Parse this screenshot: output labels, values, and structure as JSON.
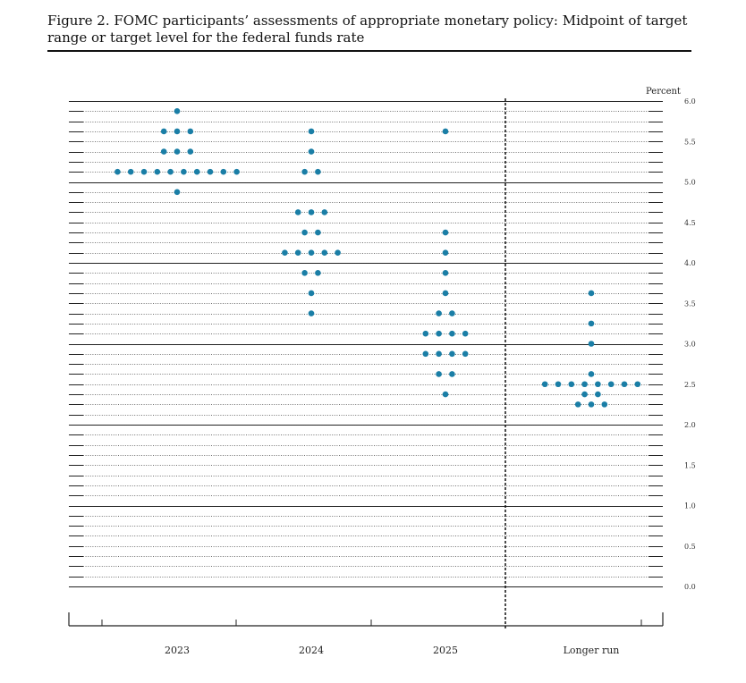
{
  "figure": {
    "title": "Figure 2.  FOMC participants’ assessments of appropriate monetary policy: Midpoint of target range or target level for the federal funds rate"
  },
  "chart_data": {
    "type": "scatter",
    "ylabel": "Percent",
    "ylim": [
      0,
      6
    ],
    "yticks": [
      "0.0",
      "0.5",
      "1.0",
      "1.5",
      "2.0",
      "2.5",
      "3.0",
      "3.5",
      "4.0",
      "4.5",
      "5.0",
      "5.5",
      "6.0"
    ],
    "categories": [
      "2023",
      "2024",
      "2025",
      "Longer run"
    ],
    "dot_color": "#1a7ea6",
    "series": [
      {
        "category": "2023",
        "points": [
          {
            "y": 5.875,
            "count": 1
          },
          {
            "y": 5.625,
            "count": 3
          },
          {
            "y": 5.375,
            "count": 3
          },
          {
            "y": 5.125,
            "count": 10
          },
          {
            "y": 4.875,
            "count": 1
          }
        ]
      },
      {
        "category": "2024",
        "points": [
          {
            "y": 5.625,
            "count": 1
          },
          {
            "y": 5.375,
            "count": 1
          },
          {
            "y": 5.125,
            "count": 2
          },
          {
            "y": 4.625,
            "count": 3
          },
          {
            "y": 4.375,
            "count": 2
          },
          {
            "y": 4.125,
            "count": 5
          },
          {
            "y": 3.875,
            "count": 2
          },
          {
            "y": 3.625,
            "count": 1
          },
          {
            "y": 3.375,
            "count": 1
          }
        ]
      },
      {
        "category": "2025",
        "points": [
          {
            "y": 5.625,
            "count": 1
          },
          {
            "y": 4.375,
            "count": 1
          },
          {
            "y": 4.125,
            "count": 1
          },
          {
            "y": 3.875,
            "count": 1
          },
          {
            "y": 3.625,
            "count": 1
          },
          {
            "y": 3.375,
            "count": 2
          },
          {
            "y": 3.125,
            "count": 4
          },
          {
            "y": 2.875,
            "count": 4
          },
          {
            "y": 2.625,
            "count": 2
          },
          {
            "y": 2.375,
            "count": 1
          }
        ]
      },
      {
        "category": "Longer run",
        "points": [
          {
            "y": 3.625,
            "count": 1
          },
          {
            "y": 3.25,
            "count": 1
          },
          {
            "y": 3.0,
            "count": 1
          },
          {
            "y": 2.625,
            "count": 1
          },
          {
            "y": 2.5,
            "count": 8
          },
          {
            "y": 2.375,
            "count": 2
          },
          {
            "y": 2.25,
            "count": 3
          }
        ]
      }
    ]
  }
}
